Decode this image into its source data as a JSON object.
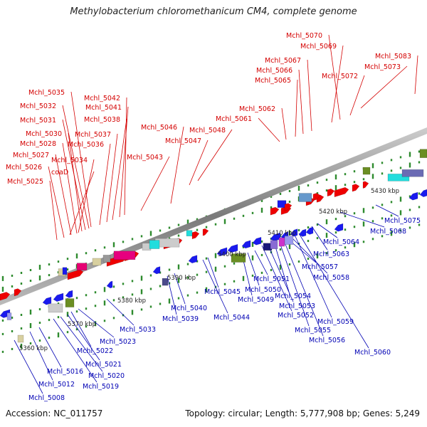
{
  "title": "Methylobacterium chloromethanicum CM4, complete genome",
  "footer": {
    "accession": "Accession: NC_011757",
    "summary": "Topology: circular; Length: 5,777,908 bp; Genes: 5,249"
  },
  "colors": {
    "backbone": "#8a8a8a",
    "forward_gene_label": "#d40000",
    "reverse_gene_label": "#0000b4",
    "tick": "#2e8b2e"
  },
  "scale_labels": [
    "5360 kbp",
    "5370 kbp",
    "5380 kbp",
    "5390 kbp",
    "5400 kbp",
    "5410 kbp",
    "5420 kbp",
    "5430 kbp"
  ],
  "forward_genes": [
    "Mchl_5025",
    "Mchl_5026",
    "Mchl_5027",
    "Mchl_5028",
    "Mchl_5030",
    "Mchl_5031",
    "coaD",
    "Mchl_5032",
    "Mchl_5034",
    "Mchl_5035",
    "Mchl_5036",
    "Mchl_5037",
    "Mchl_5038",
    "Mchl_5041",
    "Mchl_5042",
    "Mchl_5043",
    "Mchl_5046",
    "Mchl_5047",
    "Mchl_5048",
    "Mchl_5061",
    "Mchl_5062",
    "Mchl_5065",
    "Mchl_5066",
    "Mchl_5067",
    "Mchl_5069",
    "Mchl_5070",
    "Mchl_5072",
    "Mchl_5073",
    "Mchl_5083"
  ],
  "reverse_genes": [
    "Mchl_5008",
    "Mchl_5012",
    "Mchl_5016",
    "Mchl_5019",
    "Mchl_5020",
    "Mchl_5021",
    "Mchl_5022",
    "Mchl_5023",
    "Mchl_5033",
    "Mchl_5039",
    "Mchl_5040",
    "Mchl_5044",
    "Mchl_5045",
    "Mchl_5049",
    "Mchl_5050",
    "Mchl_5051",
    "Mchl_5052",
    "Mchl_5053",
    "Mchl_5054",
    "Mchl_5055",
    "Mchl_5056",
    "Mchl_5057",
    "Mchl_5058",
    "Mchl_5059",
    "Mchl_5060",
    "Mchl_5063",
    "Mchl_5064",
    "Mchl_5068",
    "Mchl_5075"
  ]
}
